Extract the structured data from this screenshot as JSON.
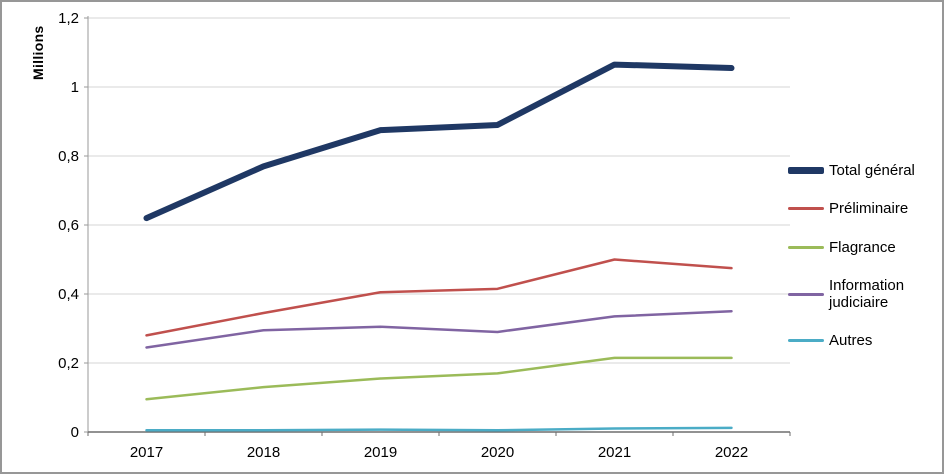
{
  "chart_data": {
    "type": "line",
    "categories": [
      "2017",
      "2018",
      "2019",
      "2020",
      "2021",
      "2022"
    ],
    "series": [
      {
        "name": "Total général",
        "values": [
          0.62,
          0.77,
          0.875,
          0.89,
          1.065,
          1.055
        ],
        "color": "#1F3864",
        "width": 6
      },
      {
        "name": "Préliminaire",
        "values": [
          0.28,
          0.345,
          0.405,
          0.415,
          0.5,
          0.475
        ],
        "color": "#C0504D",
        "width": 2.5
      },
      {
        "name": "Flagrance",
        "values": [
          0.095,
          0.13,
          0.155,
          0.17,
          0.215,
          0.215
        ],
        "color": "#9BBB59",
        "width": 2.5
      },
      {
        "name": "Information judiciaire",
        "values": [
          0.245,
          0.295,
          0.305,
          0.29,
          0.335,
          0.35
        ],
        "color": "#8064A2",
        "width": 2.5
      },
      {
        "name": "Autres",
        "values": [
          0.005,
          0.005,
          0.007,
          0.005,
          0.01,
          0.012
        ],
        "color": "#4BACC6",
        "width": 2.5
      }
    ],
    "title": "",
    "xlabel": "",
    "ylabel": "Millions",
    "ylim": [
      0,
      1.2
    ],
    "yticks": [
      0,
      0.2,
      0.4,
      0.6,
      0.8,
      1,
      1.2
    ],
    "ytick_labels": [
      "0",
      "0,2",
      "0,4",
      "0,6",
      "0,8",
      "1",
      "1,2"
    ],
    "grid": true,
    "legend_position": "right"
  },
  "colors": {
    "gridline": "#D6D6D6",
    "y_axis": "#9A9A9A",
    "x_axis": "#6E6E6E",
    "text": "#000000",
    "frame_border": "#979797"
  }
}
